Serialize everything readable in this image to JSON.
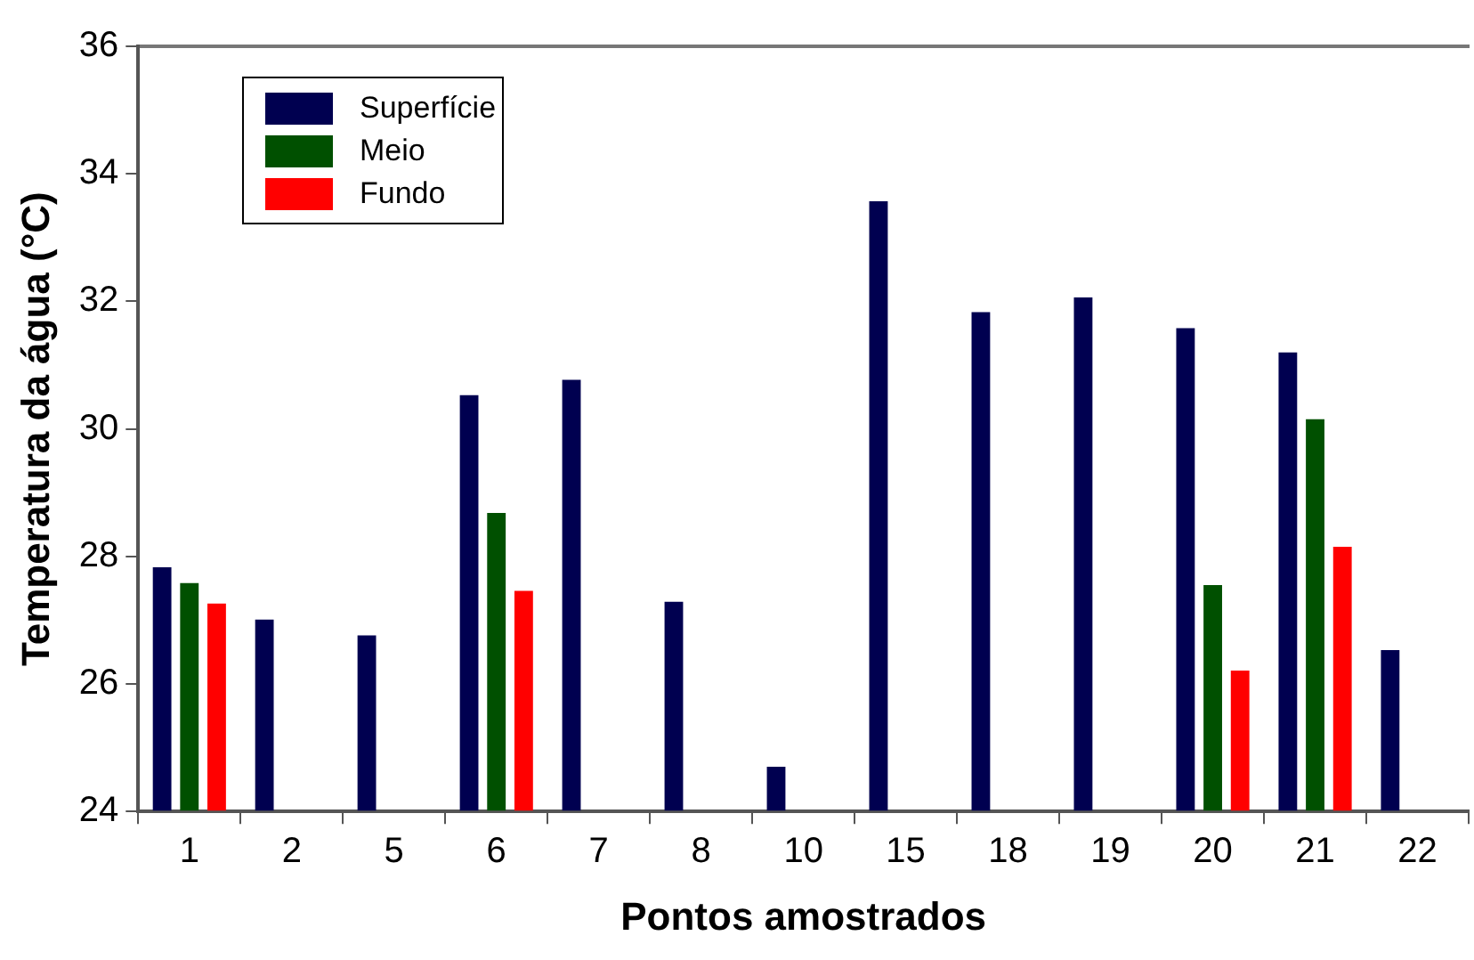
{
  "chart_data": {
    "type": "bar",
    "xlabel": "Pontos amostrados",
    "ylabel": "Temperatura da água (°C)",
    "categories": [
      "1",
      "2",
      "5",
      "6",
      "7",
      "8",
      "10",
      "15",
      "18",
      "19",
      "20",
      "21",
      "22"
    ],
    "series": [
      {
        "name": "Superfície",
        "color": "#000050",
        "values": [
          27.83,
          27.01,
          26.76,
          30.53,
          30.77,
          27.29,
          24.7,
          33.57,
          31.83,
          32.06,
          31.58,
          31.2,
          26.53
        ]
      },
      {
        "name": "Meio",
        "color": "#005000",
        "values": [
          27.58,
          null,
          null,
          28.68,
          null,
          null,
          null,
          null,
          null,
          null,
          27.55,
          30.15,
          null
        ]
      },
      {
        "name": "Fundo",
        "color": "#ff0000",
        "values": [
          27.26,
          null,
          null,
          27.46,
          null,
          null,
          null,
          null,
          null,
          null,
          26.21,
          28.15,
          null
        ]
      }
    ],
    "ylim": [
      24,
      36
    ],
    "yticks": [
      24,
      26,
      28,
      30,
      32,
      34,
      36
    ],
    "grid": false,
    "legend": "top left"
  }
}
